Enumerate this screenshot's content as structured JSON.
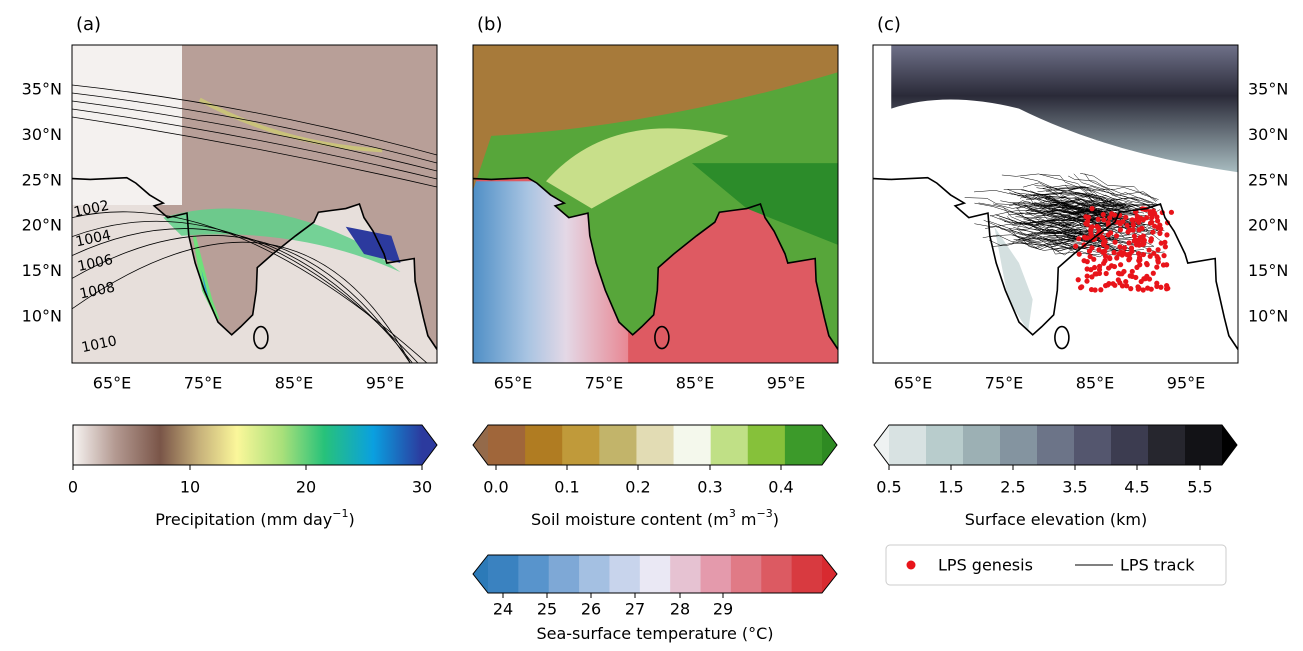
{
  "panels": [
    {
      "label": "(a)",
      "lat_labels": [
        "35°N",
        "30°N",
        "25°N",
        "20°N",
        "15°N",
        "10°N"
      ],
      "lon_labels": [
        "65°E",
        "75°E",
        "85°E",
        "95°E"
      ],
      "contour_labels": [
        "1002",
        "1004",
        "1006",
        "1008",
        "1010"
      ]
    },
    {
      "label": "(b)",
      "lon_labels": [
        "65°E",
        "75°E",
        "85°E",
        "95°E"
      ]
    },
    {
      "label": "(c)",
      "lat_labels": [
        "35°N",
        "30°N",
        "25°N",
        "20°N",
        "15°N",
        "10°N"
      ],
      "lon_labels": [
        "65°E",
        "75°E",
        "85°E",
        "95°E"
      ]
    }
  ],
  "colorbars": [
    {
      "ticks": [
        "0",
        "10",
        "20",
        "30"
      ],
      "label": [
        "Precipitation (mm day",
        "−1",
        ")"
      ]
    },
    {
      "ticks": [
        "0.0",
        "0.1",
        "0.2",
        "0.3",
        "0.4"
      ],
      "label": [
        "Soil moisture content (m",
        "3",
        " m",
        "−3",
        ")"
      ]
    },
    {
      "ticks": [
        "24",
        "25",
        "26",
        "27",
        "28",
        "29"
      ],
      "label": [
        "Sea-surface temperature (°C)"
      ]
    },
    {
      "ticks": [
        "0.5",
        "1.5",
        "2.5",
        "3.5",
        "4.5",
        "5.5"
      ],
      "label": [
        "Surface elevation (km)"
      ]
    }
  ],
  "legend": {
    "entries": [
      "LPS genesis",
      "LPS track"
    ]
  }
}
